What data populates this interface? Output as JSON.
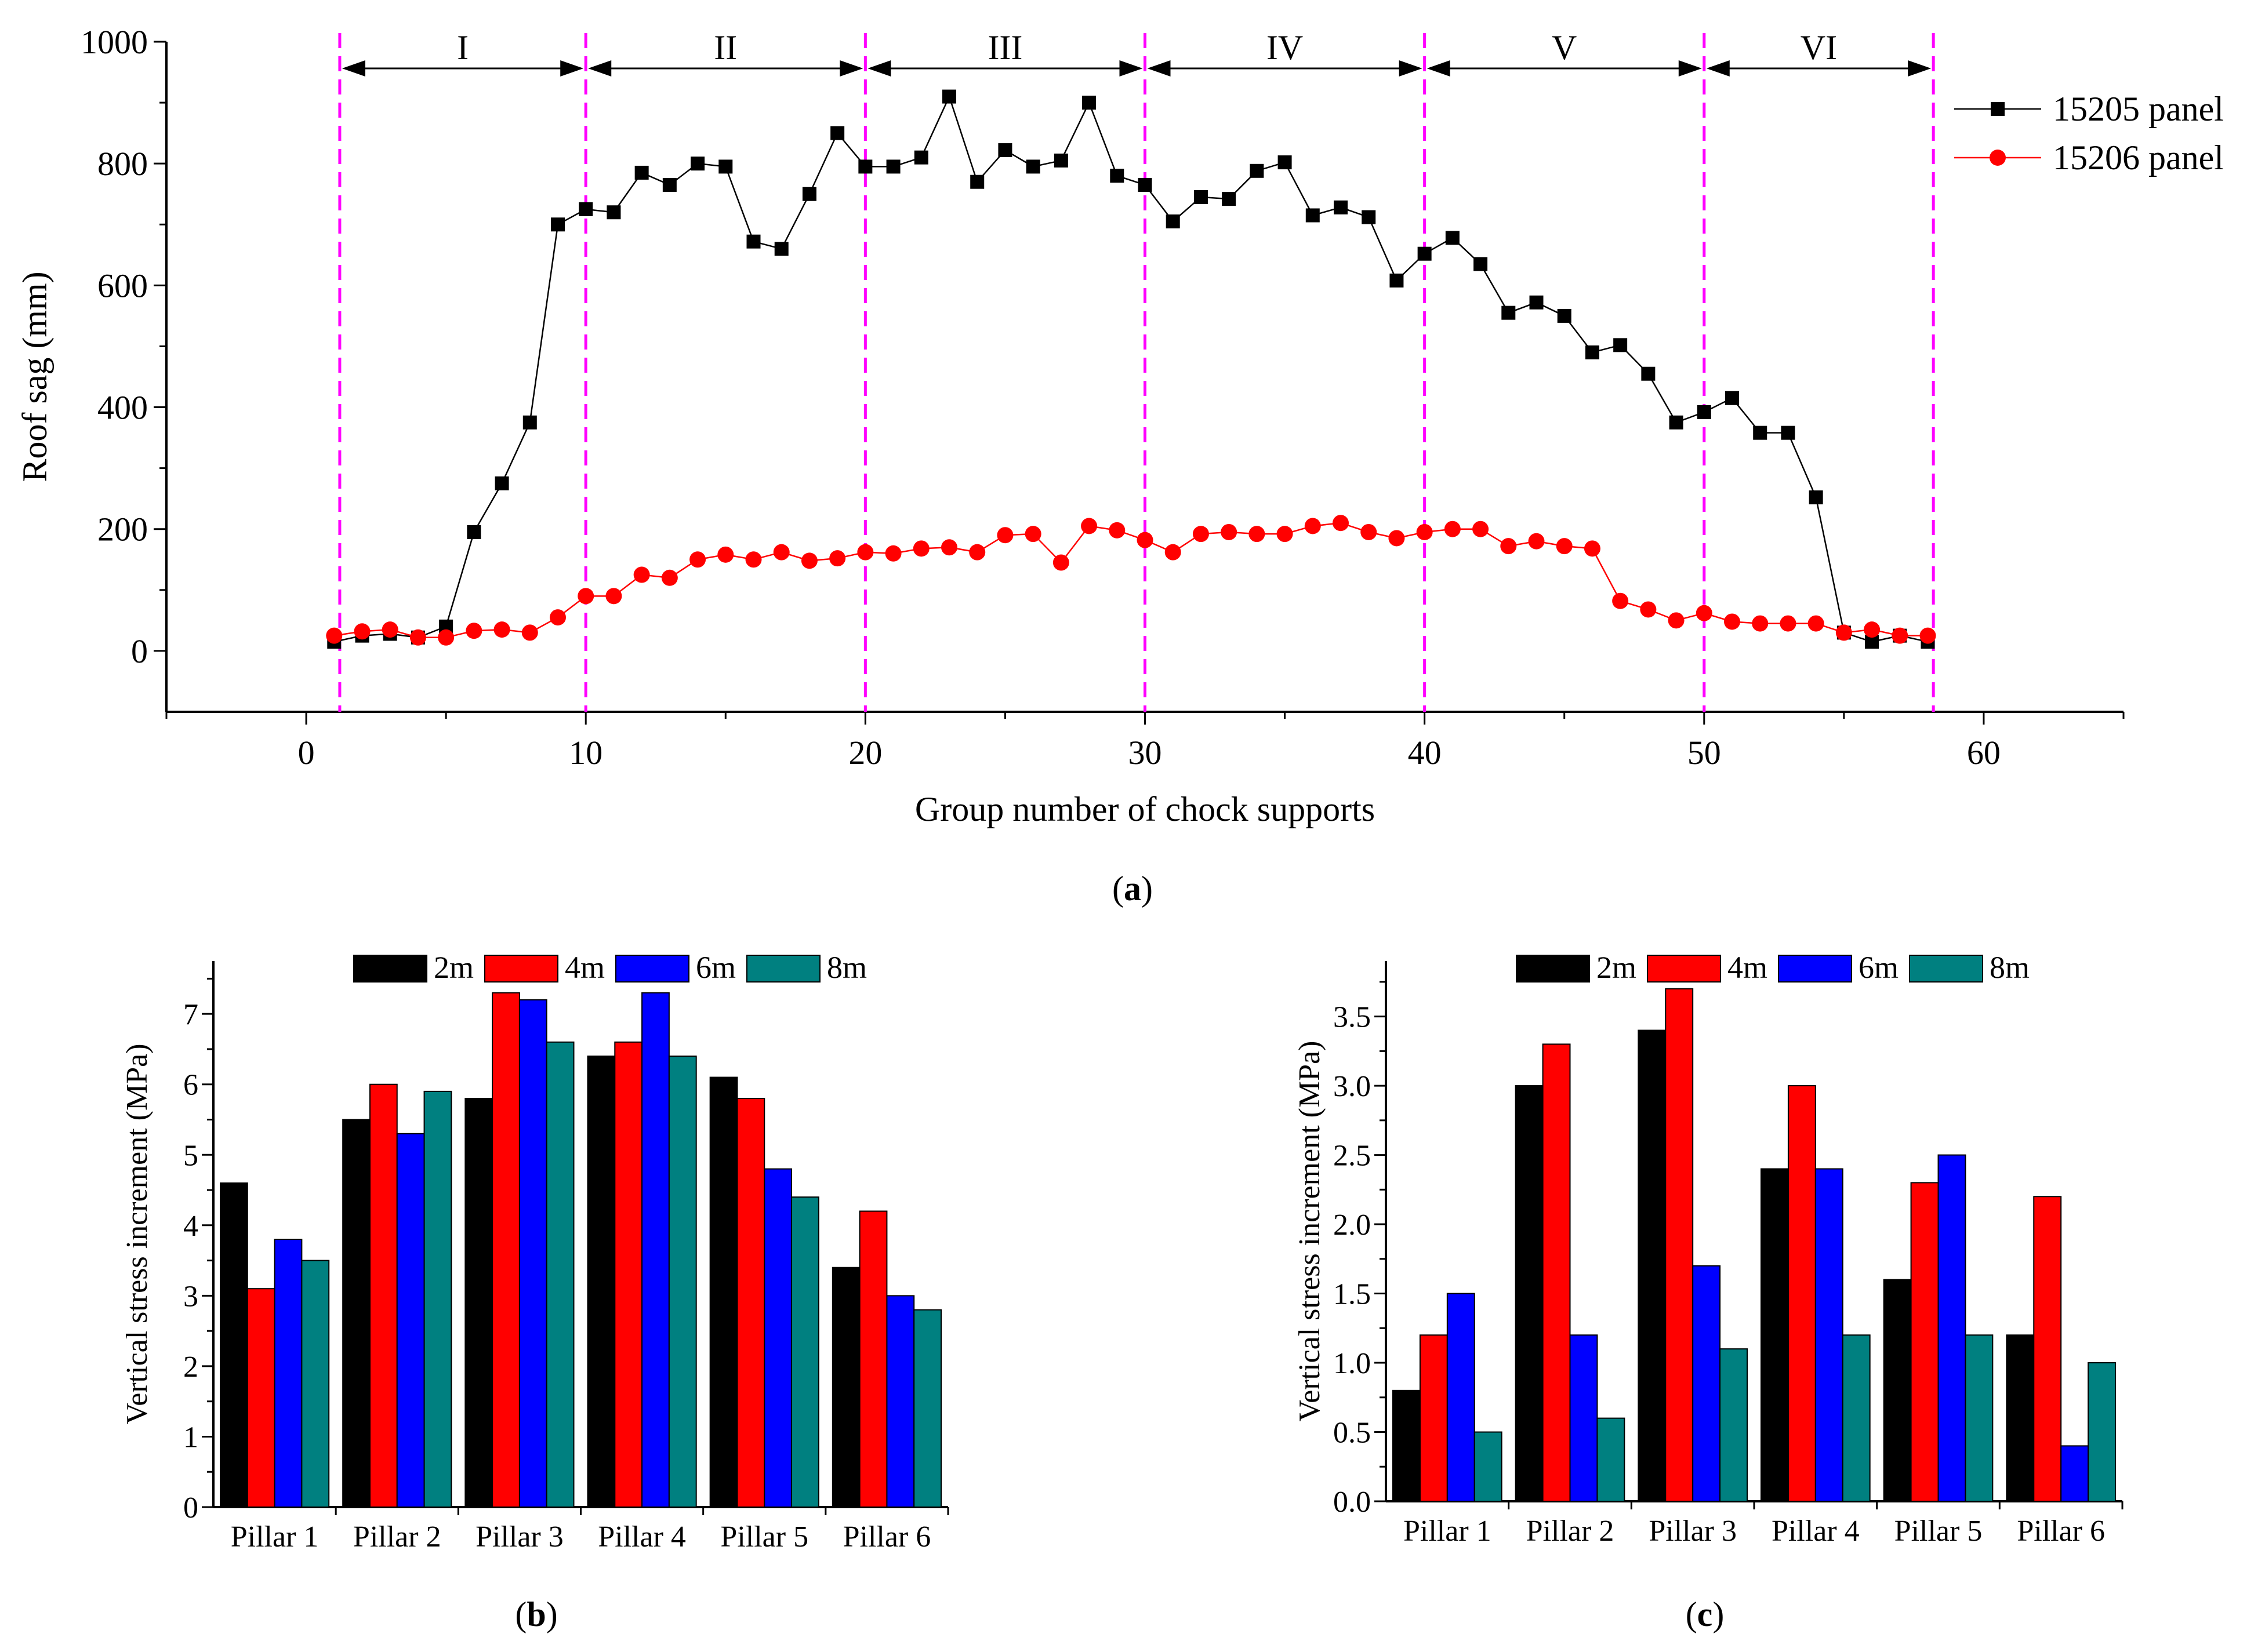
{
  "chart_data": [
    {
      "type": "line",
      "panel_label": "(a)",
      "panel_letter": "a",
      "title": "",
      "xlabel": "Group number of chock supports",
      "ylabel": "Roof sag (mm)",
      "xlim": [
        -5,
        65
      ],
      "ylim": [
        -100,
        1000
      ],
      "xticks": [
        0,
        10,
        20,
        30,
        40,
        50,
        60
      ],
      "yticks": [
        0,
        200,
        400,
        600,
        800,
        1000
      ],
      "zones": {
        "boundaries": [
          1.2,
          10,
          20,
          30,
          40,
          50,
          58.2
        ],
        "labels": [
          "I",
          "II",
          "III",
          "IV",
          "V",
          "VI"
        ]
      },
      "series": [
        {
          "name": "15205 panel",
          "color": "#000000",
          "marker": "square",
          "x": [
            1,
            2,
            3,
            4,
            5,
            6,
            7,
            8,
            9,
            10,
            11,
            12,
            13,
            14,
            15,
            16,
            17,
            18,
            19,
            20,
            21,
            22,
            23,
            24,
            25,
            26,
            27,
            28,
            29,
            30,
            31,
            32,
            33,
            34,
            35,
            36,
            37,
            38,
            39,
            40,
            41,
            42,
            43,
            44,
            45,
            46,
            47,
            48,
            49,
            50,
            51,
            52,
            53,
            54,
            55,
            56,
            57,
            58
          ],
          "values": [
            15,
            25,
            28,
            22,
            40,
            195,
            275,
            375,
            700,
            725,
            720,
            785,
            765,
            800,
            795,
            672,
            660,
            750,
            850,
            795,
            795,
            810,
            910,
            770,
            822,
            795,
            805,
            900,
            780,
            765,
            705,
            745,
            742,
            788,
            802,
            715,
            728,
            712,
            608,
            652,
            678,
            635,
            555,
            572,
            550,
            490,
            502,
            455,
            375,
            392,
            415,
            358,
            358,
            252,
            30,
            15,
            25,
            15
          ]
        },
        {
          "name": "15206 panel",
          "color": "#ff0000",
          "marker": "circle",
          "x": [
            1,
            2,
            3,
            4,
            5,
            6,
            7,
            8,
            9,
            10,
            11,
            12,
            13,
            14,
            15,
            16,
            17,
            18,
            19,
            20,
            21,
            22,
            23,
            24,
            25,
            26,
            27,
            28,
            29,
            30,
            31,
            32,
            33,
            34,
            35,
            36,
            37,
            38,
            39,
            40,
            41,
            42,
            43,
            44,
            45,
            46,
            47,
            48,
            49,
            50,
            51,
            52,
            53,
            54,
            55,
            56,
            57,
            58
          ],
          "values": [
            25,
            32,
            35,
            22,
            22,
            33,
            35,
            30,
            55,
            90,
            90,
            125,
            120,
            150,
            158,
            150,
            162,
            148,
            152,
            162,
            160,
            168,
            170,
            162,
            190,
            192,
            145,
            205,
            198,
            182,
            162,
            192,
            195,
            192,
            192,
            205,
            210,
            195,
            185,
            195,
            200,
            200,
            172,
            180,
            172,
            168,
            82,
            68,
            50,
            62,
            48,
            45,
            45,
            45,
            30,
            35,
            25,
            25
          ]
        }
      ]
    },
    {
      "type": "bar",
      "panel_label": "(b)",
      "panel_letter": "b",
      "title": "",
      "xlabel": "",
      "ylabel": "Vertical stress increment (MPa)",
      "ylim": [
        0,
        7.75
      ],
      "yticks": [
        "0",
        "1",
        "2",
        "3",
        "4",
        "5",
        "6",
        "7"
      ],
      "categories": [
        "Pillar 1",
        "Pillar 2",
        "Pillar 3",
        "Pillar 4",
        "Pillar 5",
        "Pillar 6"
      ],
      "series": [
        {
          "name": "2m",
          "color": "#000000",
          "values": [
            4.6,
            5.5,
            5.8,
            6.4,
            6.1,
            3.4
          ]
        },
        {
          "name": "4m",
          "color": "#ff0000",
          "values": [
            3.1,
            6.0,
            7.3,
            6.6,
            5.8,
            4.2
          ]
        },
        {
          "name": "6m",
          "color": "#0000ff",
          "values": [
            3.8,
            5.3,
            7.2,
            7.3,
            4.8,
            3.0
          ]
        },
        {
          "name": "8m",
          "color": "#008080",
          "values": [
            3.5,
            5.9,
            6.6,
            6.4,
            4.4,
            2.8
          ]
        }
      ]
    },
    {
      "type": "bar",
      "panel_label": "(c)",
      "panel_letter": "c",
      "title": "",
      "xlabel": "",
      "ylabel": "Vertical stress increment (MPa)",
      "ylim": [
        0,
        3.9
      ],
      "yticks": [
        "0.0",
        "0.5",
        "1.0",
        "1.5",
        "2.0",
        "2.5",
        "3.0",
        "3.5"
      ],
      "categories": [
        "Pillar 1",
        "Pillar 2",
        "Pillar 3",
        "Pillar 4",
        "Pillar 5",
        "Pillar 6"
      ],
      "series": [
        {
          "name": "2m",
          "color": "#000000",
          "values": [
            0.8,
            3.0,
            3.4,
            2.4,
            1.6,
            1.2
          ]
        },
        {
          "name": "4m",
          "color": "#ff0000",
          "values": [
            1.2,
            3.3,
            3.7,
            3.0,
            2.3,
            2.2
          ]
        },
        {
          "name": "6m",
          "color": "#0000ff",
          "values": [
            1.5,
            1.2,
            1.7,
            2.4,
            2.5,
            0.4
          ]
        },
        {
          "name": "8m",
          "color": "#008080",
          "values": [
            0.5,
            0.6,
            1.1,
            1.2,
            1.2,
            1.0
          ]
        }
      ]
    }
  ]
}
